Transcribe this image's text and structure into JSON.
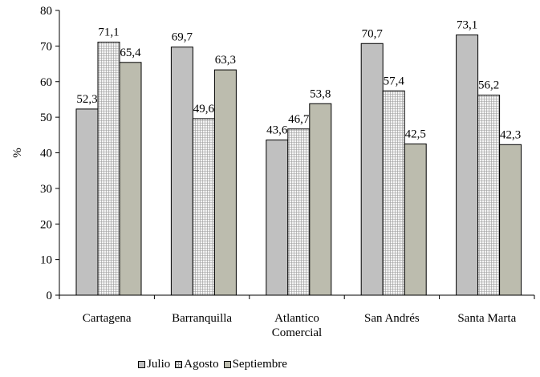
{
  "chart_data": {
    "type": "bar",
    "ylabel": "%",
    "ylim": [
      0,
      80
    ],
    "yticks": [
      "0",
      "10",
      "20",
      "30",
      "40",
      "50",
      "60",
      "70",
      "80"
    ],
    "categories": [
      [
        "Cartagena"
      ],
      [
        "Barranquilla"
      ],
      [
        "Atlantico",
        "Comercial"
      ],
      [
        "San Andrés"
      ],
      [
        "Santa Marta"
      ]
    ],
    "series": [
      {
        "name": "Julio",
        "color": "#c0c0c0",
        "pattern": "solid",
        "values": [
          52.3,
          69.7,
          43.6,
          70.7,
          73.1
        ],
        "labels": [
          "52,3",
          "69,7",
          "43,6",
          "70,7",
          "73,1"
        ]
      },
      {
        "name": "Agosto",
        "color": "#e8e8e8",
        "pattern": "grid",
        "values": [
          71.1,
          49.6,
          46.7,
          57.4,
          56.2
        ],
        "labels": [
          "71,1",
          "49,6",
          "46,7",
          "57,4",
          "56,2"
        ]
      },
      {
        "name": "Septiembre",
        "color": "#bcbcae",
        "pattern": "solid",
        "values": [
          65.4,
          63.3,
          53.8,
          42.5,
          42.3
        ],
        "labels": [
          "65,4",
          "63,3",
          "53,8",
          "42,5",
          "42,3"
        ]
      }
    ],
    "legend_position": "bottom",
    "grid": false
  }
}
